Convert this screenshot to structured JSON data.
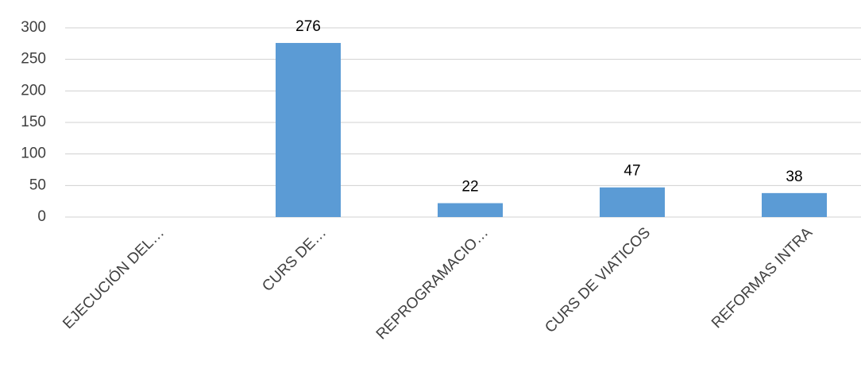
{
  "chart_data": {
    "type": "bar",
    "categories": [
      "EJECUCIÓN DEL…",
      "CURS DE…",
      "REPROGRAMACIO…",
      "CURS DE VIATICOS",
      "REFORMAS INTRA"
    ],
    "values": [
      null,
      276,
      22,
      47,
      38
    ],
    "color": "#5b9bd5",
    "ylim": [
      0,
      300
    ],
    "yticks": [
      0,
      50,
      100,
      150,
      200,
      250,
      300
    ],
    "grid": true
  }
}
